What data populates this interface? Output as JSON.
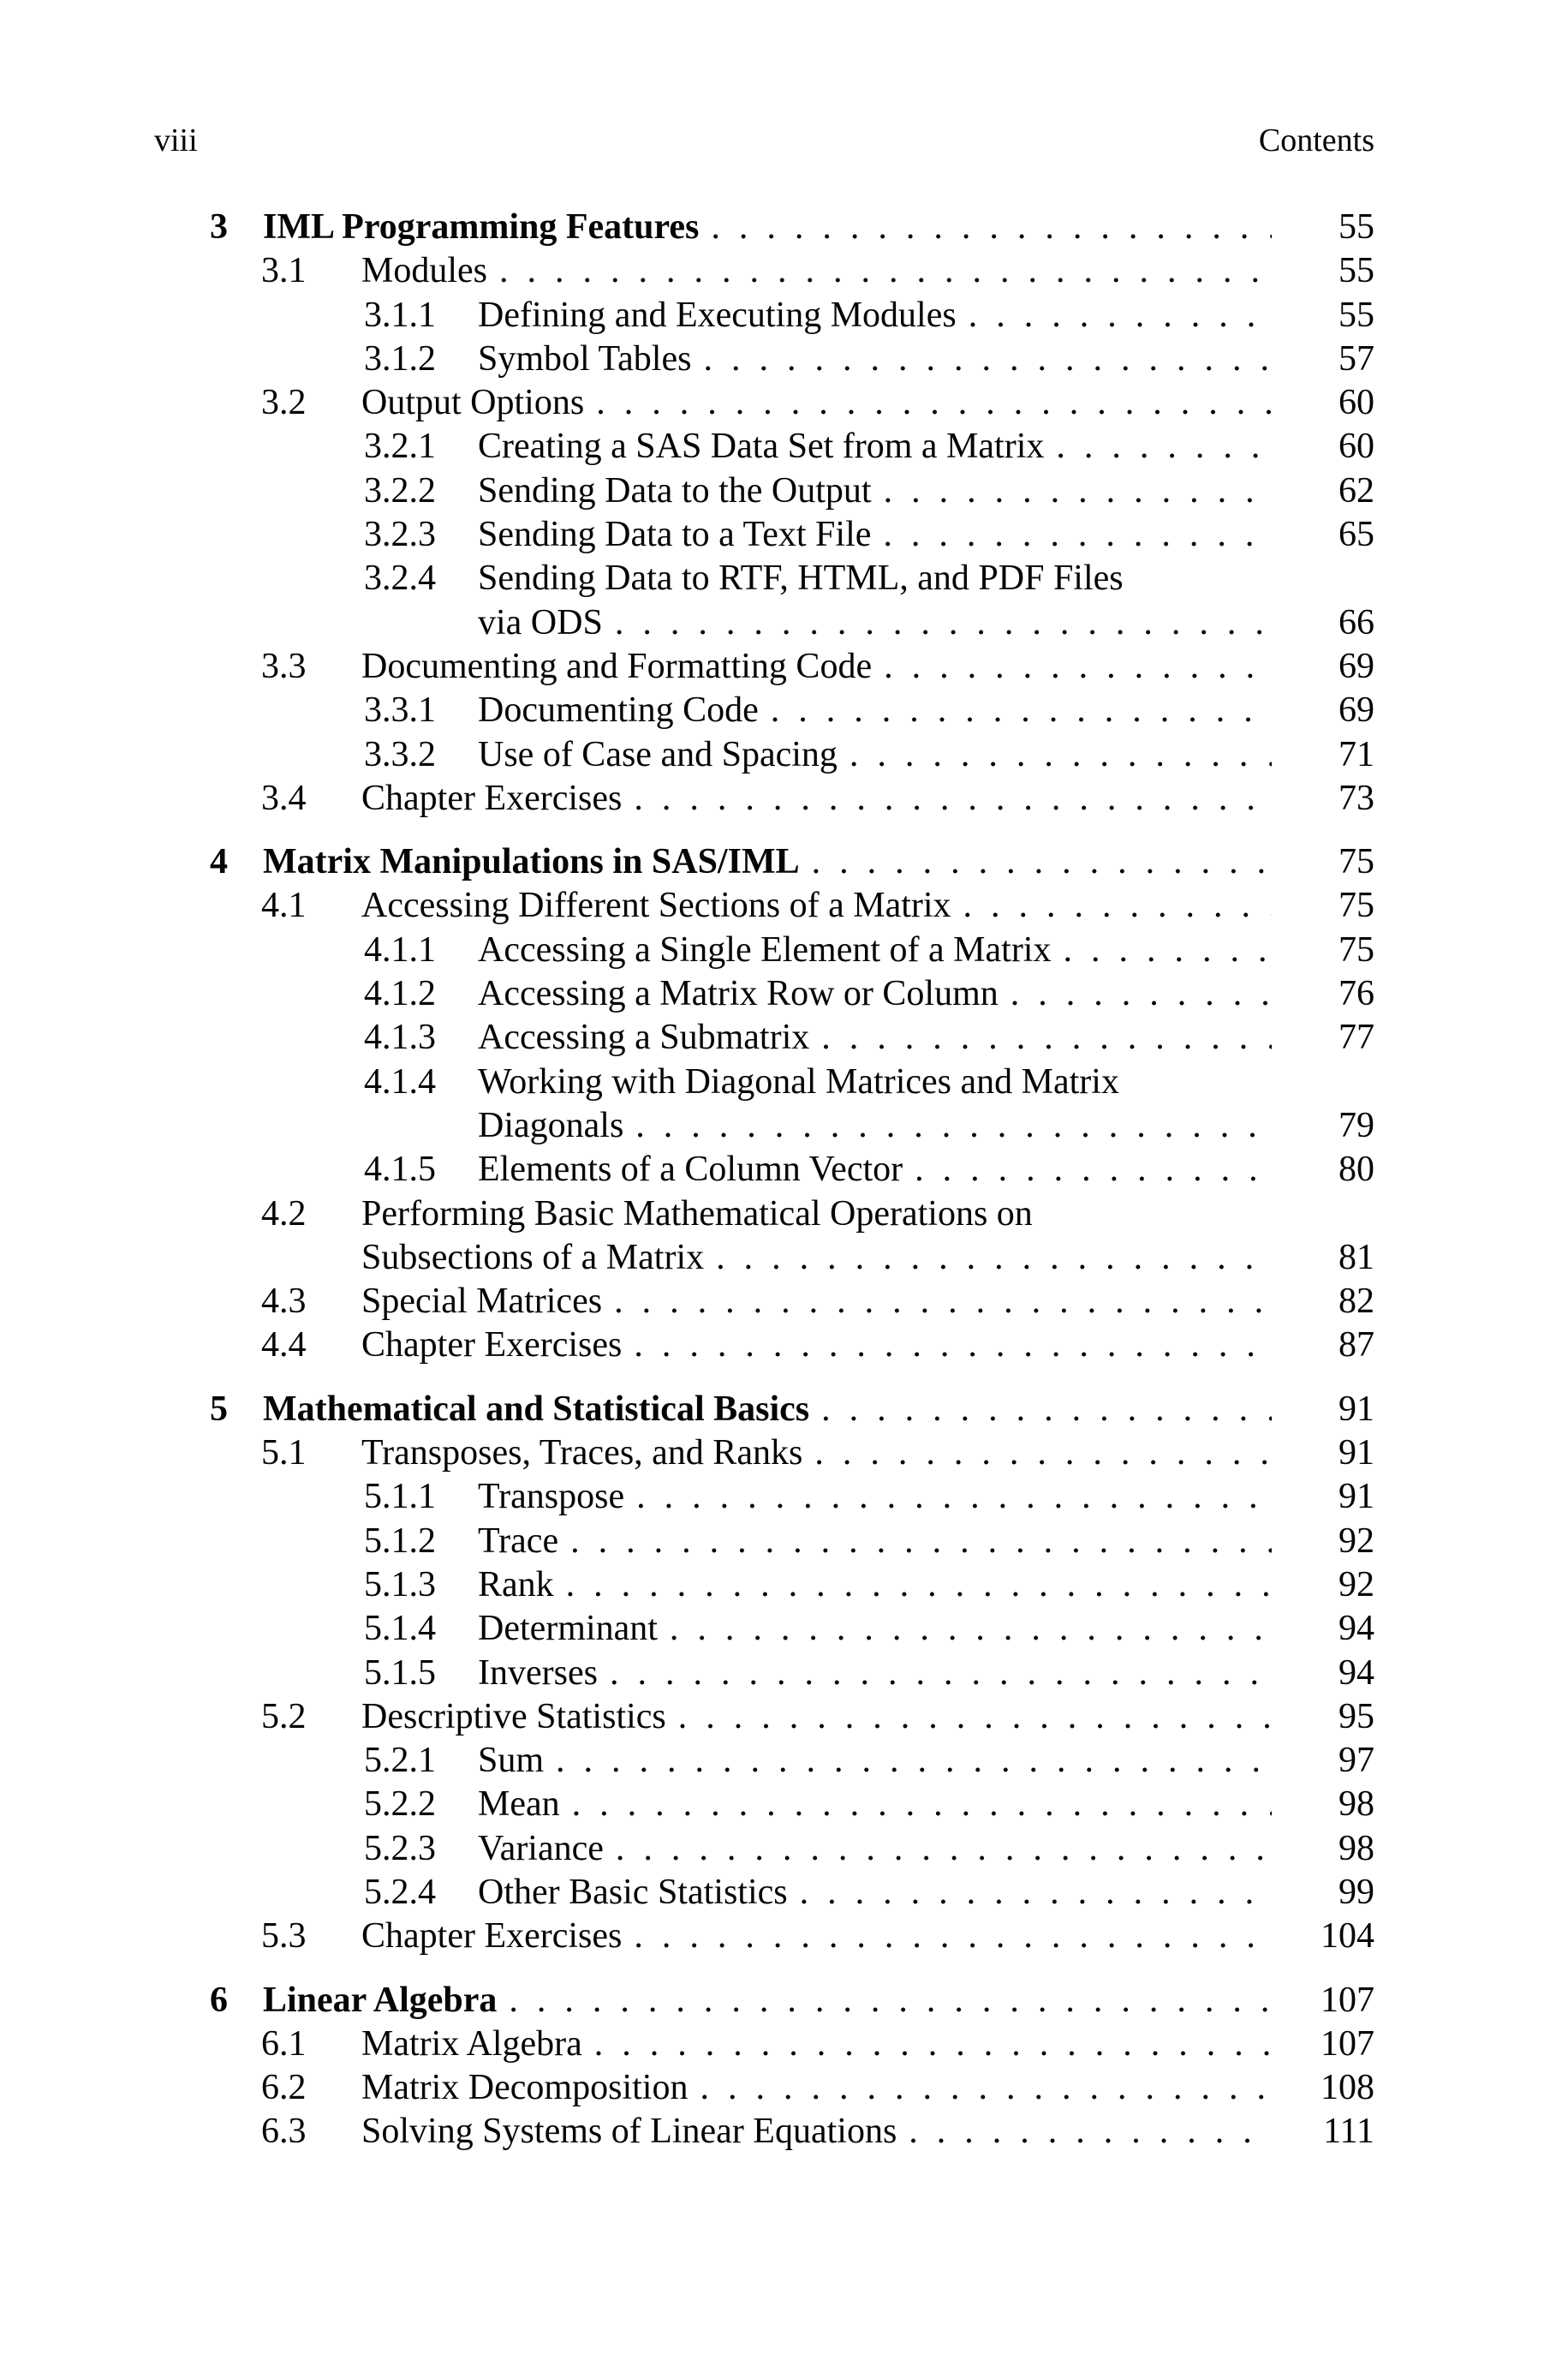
{
  "header": {
    "page_label": "viii",
    "title": "Contents"
  },
  "chapters": [
    {
      "number": "3",
      "title": "IML Programming Features",
      "page": "55",
      "rows": [
        {
          "level": "section",
          "num": "3.1",
          "text": "Modules",
          "page": "55",
          "dots": true
        },
        {
          "level": "subsection",
          "num": "3.1.1",
          "text": "Defining and Executing Modules",
          "page": "55",
          "dots": true
        },
        {
          "level": "subsection",
          "num": "3.1.2",
          "text": "Symbol Tables",
          "page": "57",
          "dots": true
        },
        {
          "level": "section",
          "num": "3.2",
          "text": "Output Options",
          "page": "60",
          "dots": true
        },
        {
          "level": "subsection",
          "num": "3.2.1",
          "text": "Creating a SAS Data Set from a Matrix",
          "page": "60",
          "dots": true
        },
        {
          "level": "subsection",
          "num": "3.2.2",
          "text": "Sending Data to the Output",
          "page": "62",
          "dots": true
        },
        {
          "level": "subsection",
          "num": "3.2.3",
          "text": "Sending Data to a Text File",
          "page": "65",
          "dots": true
        },
        {
          "level": "subsection",
          "num": "3.2.4",
          "text": "Sending Data to RTF, HTML, and PDF Files",
          "page": "",
          "dots": false
        },
        {
          "level": "subsection-cont",
          "num": "",
          "text": "via ODS",
          "page": "66",
          "dots": true
        },
        {
          "level": "section",
          "num": "3.3",
          "text": "Documenting and Formatting Code",
          "page": "69",
          "dots": true
        },
        {
          "level": "subsection",
          "num": "3.3.1",
          "text": "Documenting Code",
          "page": "69",
          "dots": true
        },
        {
          "level": "subsection",
          "num": "3.3.2",
          "text": "Use of Case and Spacing",
          "page": "71",
          "dots": true
        },
        {
          "level": "section",
          "num": "3.4",
          "text": "Chapter Exercises",
          "page": "73",
          "dots": true
        }
      ]
    },
    {
      "number": "4",
      "title": "Matrix Manipulations in SAS/IML",
      "page": "75",
      "rows": [
        {
          "level": "section",
          "num": "4.1",
          "text": "Accessing Different Sections of a Matrix",
          "page": "75",
          "dots": true
        },
        {
          "level": "subsection",
          "num": "4.1.1",
          "text": "Accessing a Single Element of a Matrix",
          "page": "75",
          "dots": true
        },
        {
          "level": "subsection",
          "num": "4.1.2",
          "text": "Accessing a Matrix Row or Column",
          "page": "76",
          "dots": true
        },
        {
          "level": "subsection",
          "num": "4.1.3",
          "text": "Accessing a Submatrix",
          "page": "77",
          "dots": true
        },
        {
          "level": "subsection",
          "num": "4.1.4",
          "text": "Working with Diagonal Matrices and Matrix",
          "page": "",
          "dots": false
        },
        {
          "level": "subsection-cont",
          "num": "",
          "text": "Diagonals",
          "page": "79",
          "dots": true
        },
        {
          "level": "subsection",
          "num": "4.1.5",
          "text": "Elements of a Column Vector",
          "page": "80",
          "dots": true
        },
        {
          "level": "section",
          "num": "4.2",
          "text": "Performing Basic Mathematical Operations on",
          "page": "",
          "dots": false
        },
        {
          "level": "section-cont",
          "num": "",
          "text": "Subsections of a Matrix",
          "page": "81",
          "dots": true
        },
        {
          "level": "section",
          "num": "4.3",
          "text": "Special Matrices",
          "page": "82",
          "dots": true
        },
        {
          "level": "section",
          "num": "4.4",
          "text": "Chapter Exercises",
          "page": "87",
          "dots": true
        }
      ]
    },
    {
      "number": "5",
      "title": "Mathematical and Statistical Basics",
      "page": "91",
      "rows": [
        {
          "level": "section",
          "num": "5.1",
          "text": "Transposes, Traces, and Ranks",
          "page": "91",
          "dots": true
        },
        {
          "level": "subsection",
          "num": "5.1.1",
          "text": "Transpose",
          "page": "91",
          "dots": true
        },
        {
          "level": "subsection",
          "num": "5.1.2",
          "text": "Trace",
          "page": "92",
          "dots": true
        },
        {
          "level": "subsection",
          "num": "5.1.3",
          "text": "Rank",
          "page": "92",
          "dots": true
        },
        {
          "level": "subsection",
          "num": "5.1.4",
          "text": "Determinant",
          "page": "94",
          "dots": true
        },
        {
          "level": "subsection",
          "num": "5.1.5",
          "text": "Inverses",
          "page": "94",
          "dots": true
        },
        {
          "level": "section",
          "num": "5.2",
          "text": "Descriptive Statistics",
          "page": "95",
          "dots": true
        },
        {
          "level": "subsection",
          "num": "5.2.1",
          "text": "Sum",
          "page": "97",
          "dots": true
        },
        {
          "level": "subsection",
          "num": "5.2.2",
          "text": "Mean",
          "page": "98",
          "dots": true
        },
        {
          "level": "subsection",
          "num": "5.2.3",
          "text": "Variance",
          "page": "98",
          "dots": true
        },
        {
          "level": "subsection",
          "num": "5.2.4",
          "text": "Other Basic Statistics",
          "page": "99",
          "dots": true
        },
        {
          "level": "section",
          "num": "5.3",
          "text": "Chapter Exercises",
          "page": "104",
          "dots": true
        }
      ]
    },
    {
      "number": "6",
      "title": "Linear Algebra",
      "page": "107",
      "rows": [
        {
          "level": "section",
          "num": "6.1",
          "text": "Matrix Algebra",
          "page": "107",
          "dots": true
        },
        {
          "level": "section",
          "num": "6.2",
          "text": "Matrix Decomposition",
          "page": "108",
          "dots": true
        },
        {
          "level": "section",
          "num": "6.3",
          "text": "Solving Systems of Linear Equations",
          "page": "111",
          "dots": true
        }
      ]
    }
  ]
}
